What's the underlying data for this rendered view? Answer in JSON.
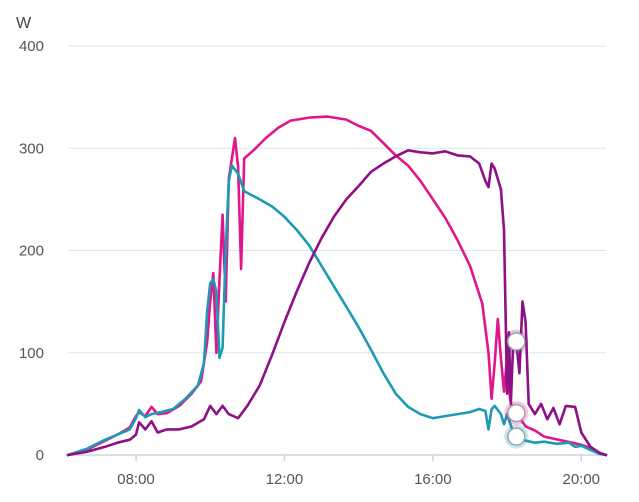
{
  "chart_data": {
    "type": "line",
    "ylabel": "W",
    "ylim": [
      0,
      400
    ],
    "xlim": [
      "06:10",
      "20:40"
    ],
    "yticks": [
      "0",
      "100",
      "200",
      "300",
      "400"
    ],
    "xticks": [
      "08:00",
      "12:00",
      "16:00",
      "20:00"
    ],
    "grid": true,
    "legend": "none",
    "series": [
      {
        "color": "#e0168a",
        "marker": {
          "x": "18:15",
          "y": 41
        },
        "points": [
          [
            "06:10",
            0
          ],
          [
            "06:40",
            5
          ],
          [
            "07:10",
            14
          ],
          [
            "07:30",
            20
          ],
          [
            "07:50",
            27
          ],
          [
            "08:00",
            38
          ],
          [
            "08:05",
            42
          ],
          [
            "08:15",
            38
          ],
          [
            "08:25",
            47
          ],
          [
            "08:35",
            40
          ],
          [
            "08:50",
            41
          ],
          [
            "09:10",
            48
          ],
          [
            "09:30",
            60
          ],
          [
            "09:45",
            72
          ],
          [
            "09:55",
            110
          ],
          [
            "10:00",
            150
          ],
          [
            "10:05",
            178
          ],
          [
            "10:10",
            100
          ],
          [
            "10:15",
            172
          ],
          [
            "10:20",
            235
          ],
          [
            "10:25",
            150
          ],
          [
            "10:30",
            270
          ],
          [
            "10:35",
            290
          ],
          [
            "10:40",
            310
          ],
          [
            "10:45",
            282
          ],
          [
            "10:50",
            182
          ],
          [
            "10:55",
            290
          ],
          [
            "11:10",
            298
          ],
          [
            "11:30",
            310
          ],
          [
            "11:50",
            320
          ],
          [
            "12:10",
            327
          ],
          [
            "12:40",
            330
          ],
          [
            "13:10",
            331
          ],
          [
            "13:40",
            328
          ],
          [
            "14:00",
            322
          ],
          [
            "14:20",
            317
          ],
          [
            "14:40",
            305
          ],
          [
            "15:00",
            293
          ],
          [
            "15:20",
            283
          ],
          [
            "15:40",
            268
          ],
          [
            "16:00",
            250
          ],
          [
            "16:20",
            232
          ],
          [
            "16:40",
            210
          ],
          [
            "17:00",
            185
          ],
          [
            "17:20",
            148
          ],
          [
            "17:30",
            100
          ],
          [
            "17:35",
            55
          ],
          [
            "17:40",
            90
          ],
          [
            "17:45",
            133
          ],
          [
            "17:50",
            95
          ],
          [
            "17:55",
            62
          ],
          [
            "18:00",
            95
          ],
          [
            "18:05",
            55
          ],
          [
            "18:10",
            40
          ],
          [
            "18:15",
            41
          ],
          [
            "18:30",
            28
          ],
          [
            "18:45",
            24
          ],
          [
            "19:00",
            18
          ],
          [
            "19:15",
            16
          ],
          [
            "19:30",
            14
          ],
          [
            "19:45",
            12
          ],
          [
            "20:00",
            10
          ],
          [
            "20:15",
            7
          ],
          [
            "20:30",
            2
          ],
          [
            "20:40",
            0
          ]
        ]
      },
      {
        "color": "#1e9bb4",
        "marker": {
          "x": "18:15",
          "y": 18
        },
        "points": [
          [
            "06:10",
            0
          ],
          [
            "06:40",
            6
          ],
          [
            "07:10",
            15
          ],
          [
            "07:30",
            20
          ],
          [
            "07:50",
            25
          ],
          [
            "08:00",
            36
          ],
          [
            "08:05",
            44
          ],
          [
            "08:15",
            37
          ],
          [
            "08:25",
            40
          ],
          [
            "08:40",
            42
          ],
          [
            "09:00",
            45
          ],
          [
            "09:20",
            55
          ],
          [
            "09:40",
            68
          ],
          [
            "09:50",
            90
          ],
          [
            "09:55",
            140
          ],
          [
            "10:00",
            168
          ],
          [
            "10:05",
            172
          ],
          [
            "10:10",
            160
          ],
          [
            "10:15",
            95
          ],
          [
            "10:20",
            105
          ],
          [
            "10:25",
            200
          ],
          [
            "10:30",
            268
          ],
          [
            "10:35",
            283
          ],
          [
            "10:45",
            275
          ],
          [
            "10:55",
            258
          ],
          [
            "11:20",
            250
          ],
          [
            "11:40",
            243
          ],
          [
            "12:00",
            233
          ],
          [
            "12:20",
            220
          ],
          [
            "12:40",
            205
          ],
          [
            "13:00",
            185
          ],
          [
            "13:20",
            165
          ],
          [
            "13:40",
            145
          ],
          [
            "14:00",
            125
          ],
          [
            "14:20",
            103
          ],
          [
            "14:40",
            80
          ],
          [
            "15:00",
            60
          ],
          [
            "15:20",
            47
          ],
          [
            "15:40",
            40
          ],
          [
            "16:00",
            36
          ],
          [
            "16:20",
            38
          ],
          [
            "16:40",
            40
          ],
          [
            "17:00",
            42
          ],
          [
            "17:15",
            45
          ],
          [
            "17:25",
            43
          ],
          [
            "17:30",
            25
          ],
          [
            "17:35",
            45
          ],
          [
            "17:40",
            48
          ],
          [
            "17:50",
            40
          ],
          [
            "17:55",
            30
          ],
          [
            "18:00",
            40
          ],
          [
            "18:10",
            22
          ],
          [
            "18:15",
            18
          ],
          [
            "18:30",
            14
          ],
          [
            "18:45",
            12
          ],
          [
            "19:00",
            13
          ],
          [
            "19:20",
            11
          ],
          [
            "19:40",
            12
          ],
          [
            "19:50",
            8
          ],
          [
            "20:00",
            9
          ],
          [
            "20:15",
            5
          ],
          [
            "20:30",
            1
          ],
          [
            "20:40",
            0
          ]
        ]
      },
      {
        "color": "#8e0f86",
        "marker": {
          "x": "18:15",
          "y": 111
        },
        "points": [
          [
            "06:10",
            0
          ],
          [
            "06:40",
            3
          ],
          [
            "07:10",
            8
          ],
          [
            "07:30",
            12
          ],
          [
            "07:50",
            15
          ],
          [
            "08:00",
            20
          ],
          [
            "08:05",
            32
          ],
          [
            "08:15",
            25
          ],
          [
            "08:25",
            33
          ],
          [
            "08:35",
            22
          ],
          [
            "08:50",
            25
          ],
          [
            "09:10",
            25
          ],
          [
            "09:30",
            28
          ],
          [
            "09:50",
            35
          ],
          [
            "10:00",
            48
          ],
          [
            "10:10",
            40
          ],
          [
            "10:20",
            48
          ],
          [
            "10:30",
            40
          ],
          [
            "10:45",
            36
          ],
          [
            "11:00",
            48
          ],
          [
            "11:20",
            68
          ],
          [
            "11:40",
            98
          ],
          [
            "12:00",
            130
          ],
          [
            "12:20",
            160
          ],
          [
            "12:40",
            188
          ],
          [
            "13:00",
            212
          ],
          [
            "13:20",
            233
          ],
          [
            "13:40",
            250
          ],
          [
            "14:00",
            263
          ],
          [
            "14:20",
            277
          ],
          [
            "14:40",
            285
          ],
          [
            "15:00",
            292
          ],
          [
            "15:20",
            298
          ],
          [
            "15:40",
            296
          ],
          [
            "16:00",
            295
          ],
          [
            "16:20",
            297
          ],
          [
            "16:40",
            293
          ],
          [
            "17:00",
            292
          ],
          [
            "17:15",
            285
          ],
          [
            "17:25",
            268
          ],
          [
            "17:30",
            262
          ],
          [
            "17:35",
            285
          ],
          [
            "17:40",
            280
          ],
          [
            "17:50",
            260
          ],
          [
            "17:55",
            220
          ],
          [
            "18:00",
            60
          ],
          [
            "18:03",
            120
          ],
          [
            "18:06",
            50
          ],
          [
            "18:10",
            110
          ],
          [
            "18:15",
            111
          ],
          [
            "18:20",
            80
          ],
          [
            "18:25",
            150
          ],
          [
            "18:30",
            130
          ],
          [
            "18:35",
            50
          ],
          [
            "18:45",
            40
          ],
          [
            "18:55",
            50
          ],
          [
            "19:05",
            35
          ],
          [
            "19:15",
            46
          ],
          [
            "19:25",
            30
          ],
          [
            "19:35",
            48
          ],
          [
            "19:50",
            47
          ],
          [
            "20:00",
            22
          ],
          [
            "20:15",
            8
          ],
          [
            "20:30",
            2
          ],
          [
            "20:40",
            0
          ]
        ]
      }
    ]
  }
}
